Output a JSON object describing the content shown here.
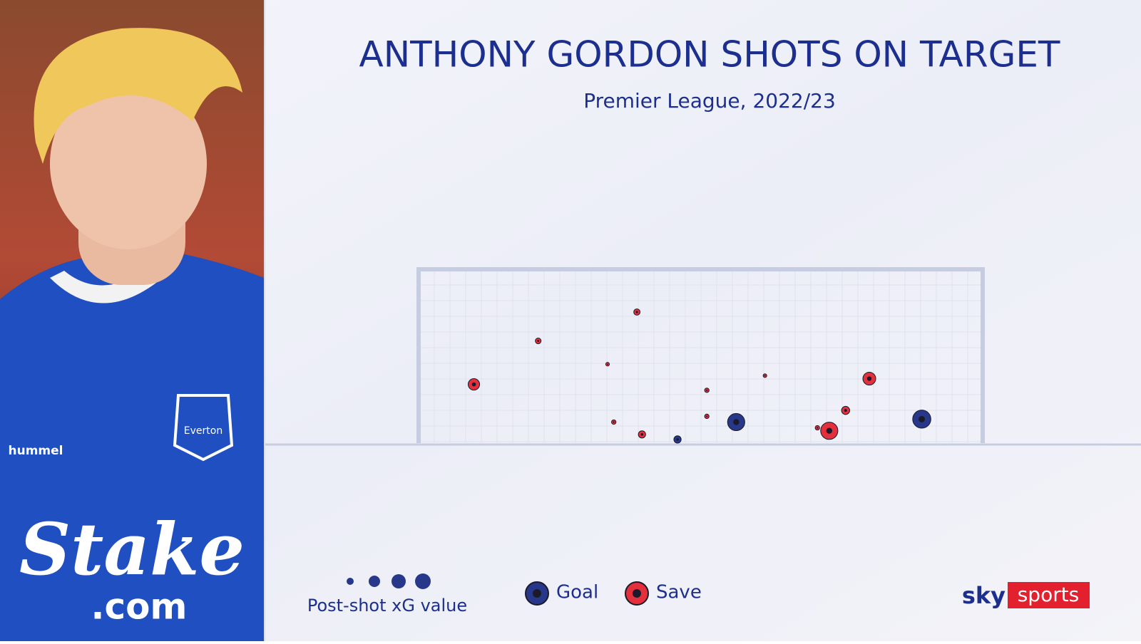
{
  "chart_data": {
    "type": "scatter",
    "title": "ANTHONY GORDON SHOTS ON TARGET",
    "subtitle": "Premier League, 2022/23",
    "size_legend_label": "Post-shot xG value",
    "xlim": [
      0,
      100
    ],
    "ylim": [
      0,
      100
    ],
    "series": [
      {
        "name": "Goal",
        "color": "#27388a",
        "x": [
          45.9,
          56.3,
          89.2
        ],
        "values": [
          2.1,
          12.1,
          13.8
        ],
        "sizes": [
          0.08,
          0.45,
          0.5
        ]
      },
      {
        "name": "Save",
        "color": "#e3303c",
        "x": [
          9.8,
          21.2,
          38.7,
          33.5,
          34.6,
          39.6,
          51.1,
          51.1,
          61.4,
          70.7,
          72.8,
          75.7,
          79.9
        ],
        "values": [
          33.8,
          58.8,
          75.4,
          45.4,
          12.1,
          5,
          30.4,
          15.4,
          38.8,
          8.8,
          7.1,
          18.8,
          37.1
        ],
        "sizes": [
          0.2,
          0.05,
          0.06,
          0.02,
          0.03,
          0.08,
          0.03,
          0.03,
          0.02,
          0.03,
          0.45,
          0.1,
          0.25
        ]
      }
    ]
  },
  "photo": {
    "kit_brand": "hummel",
    "club": "Everton",
    "sponsor": "Stake",
    "sponsor_suffix": ".com"
  },
  "logo": {
    "left": "sky",
    "right": "sports"
  }
}
